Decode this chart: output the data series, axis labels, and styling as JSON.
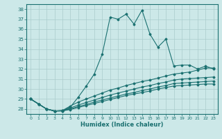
{
  "xlabel": "Humidex (Indice chaleur)",
  "bg_color": "#cce8e8",
  "grid_color": "#aacccc",
  "line_color": "#1a7070",
  "xlim": [
    -0.5,
    23.5
  ],
  "ylim": [
    27.5,
    38.5
  ],
  "yticks": [
    28,
    29,
    30,
    31,
    32,
    33,
    34,
    35,
    36,
    37,
    38
  ],
  "xticks": [
    0,
    1,
    2,
    3,
    4,
    5,
    6,
    7,
    8,
    9,
    10,
    11,
    12,
    13,
    14,
    15,
    16,
    17,
    18,
    19,
    20,
    21,
    22,
    23
  ],
  "series": [
    [
      29.0,
      28.5,
      28.0,
      27.8,
      27.8,
      28.2,
      29.2,
      30.3,
      31.5,
      33.5,
      37.2,
      37.0,
      37.5,
      36.5,
      37.9,
      35.5,
      34.2,
      35.0,
      32.3,
      32.4,
      32.4,
      32.0,
      32.3,
      32.0
    ],
    [
      29.0,
      28.5,
      28.0,
      27.8,
      27.85,
      28.3,
      28.7,
      29.0,
      29.3,
      29.6,
      29.9,
      30.1,
      30.35,
      30.55,
      30.75,
      30.9,
      31.1,
      31.3,
      31.5,
      31.6,
      31.7,
      31.9,
      32.1,
      32.1
    ],
    [
      29.0,
      28.5,
      28.0,
      27.8,
      27.83,
      28.1,
      28.4,
      28.65,
      28.9,
      29.15,
      29.4,
      29.6,
      29.8,
      30.0,
      30.2,
      30.35,
      30.55,
      30.7,
      30.9,
      31.0,
      31.05,
      31.1,
      31.15,
      31.2
    ],
    [
      29.0,
      28.5,
      28.0,
      27.8,
      27.82,
      28.0,
      28.25,
      28.45,
      28.7,
      28.9,
      29.1,
      29.3,
      29.5,
      29.65,
      29.85,
      30.0,
      30.2,
      30.35,
      30.55,
      30.6,
      30.65,
      30.7,
      30.75,
      30.8
    ],
    [
      29.0,
      28.5,
      28.0,
      27.8,
      27.81,
      27.95,
      28.15,
      28.35,
      28.55,
      28.75,
      28.95,
      29.15,
      29.35,
      29.5,
      29.65,
      29.8,
      30.0,
      30.15,
      30.3,
      30.35,
      30.4,
      30.45,
      30.5,
      30.5
    ]
  ]
}
